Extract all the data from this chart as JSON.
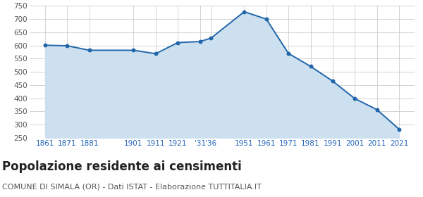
{
  "years": [
    1861,
    1871,
    1881,
    1901,
    1911,
    1921,
    1931,
    1936,
    1951,
    1961,
    1971,
    1981,
    1991,
    2001,
    2011,
    2021
  ],
  "population": [
    601,
    599,
    582,
    582,
    569,
    611,
    615,
    628,
    728,
    700,
    570,
    521,
    465,
    399,
    357,
    283
  ],
  "line_color": "#2266aa",
  "fill_color": "#cce0f0",
  "marker_color": "#2266aa",
  "bg_color": "#ffffff",
  "grid_color": "#cccccc",
  "ylim": [
    250,
    750
  ],
  "yticks": [
    250,
    300,
    350,
    400,
    450,
    500,
    550,
    600,
    650,
    700,
    750
  ],
  "xlim_min": 1854,
  "xlim_max": 2028,
  "title": "Popolazione residente ai censimenti",
  "subtitle": "COMUNE DI SIMALA (OR) - Dati ISTAT - Elaborazione TUTTITALIA.IT",
  "title_fontsize": 12,
  "subtitle_fontsize": 8,
  "ytick_fontsize": 7.5,
  "xtick_fontsize": 7.5,
  "tick_label_color": "#2266bb",
  "ytick_color": "#555555",
  "line_width": 1.4,
  "marker_size": 18
}
